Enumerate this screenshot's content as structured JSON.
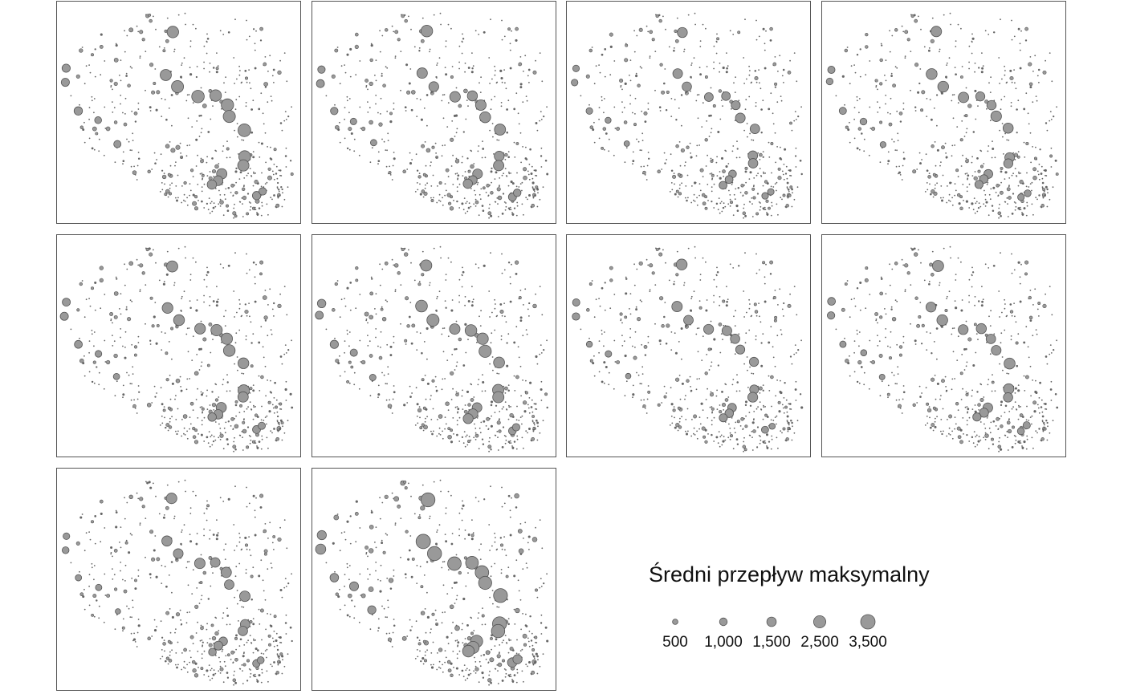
{
  "figure": {
    "marker_fill": "#999999",
    "marker_stroke": "#555555",
    "small_dot_color": "#666666",
    "panel_border_color": "#555555",
    "panel_count": 10,
    "layout": "small-multiples 4 columns x 3 rows"
  },
  "legend": {
    "title": "Średni przepływ maksymalny",
    "items": [
      {
        "label": "500",
        "value": 500
      },
      {
        "label": "1,000",
        "value": 1000
      },
      {
        "label": "1,500",
        "value": 1500
      },
      {
        "label": "2,500",
        "value": 2500
      },
      {
        "label": "3,500",
        "value": 3500
      }
    ]
  },
  "chart_data": {
    "type": "scatter",
    "kind": "proportional-symbol map",
    "size_variable": "Średni przepływ maksymalny",
    "size_breaks": [
      500,
      1000,
      1500,
      2500,
      3500
    ],
    "panels": [
      {
        "label": "",
        "intensity": 0.78
      },
      {
        "label": "",
        "intensity": 0.62
      },
      {
        "label": "",
        "intensity": 0.48
      },
      {
        "label": "",
        "intensity": 0.56
      },
      {
        "label": "",
        "intensity": 0.66
      },
      {
        "label": "",
        "intensity": 0.72
      },
      {
        "label": "",
        "intensity": 0.52
      },
      {
        "label": "",
        "intensity": 0.58
      },
      {
        "label": "",
        "intensity": 0.55
      },
      {
        "label": "",
        "intensity": 1.0
      }
    ]
  }
}
